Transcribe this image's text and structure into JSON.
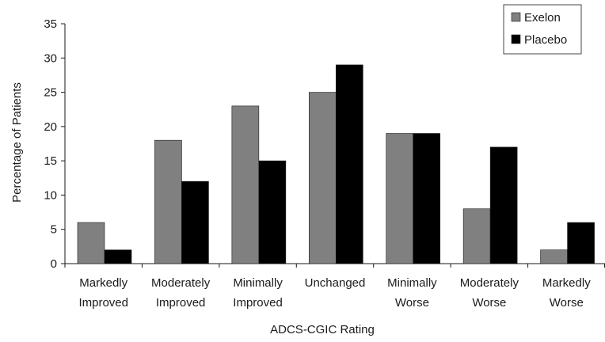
{
  "chart_data": {
    "type": "bar",
    "title": "",
    "xlabel": "ADCS-CGIC Rating",
    "ylabel": "Percentage of Patients",
    "ylim": [
      0,
      35
    ],
    "yticks": [
      0,
      5,
      10,
      15,
      20,
      25,
      30,
      35
    ],
    "grid": false,
    "legend_position": "top-right",
    "categories": [
      [
        "Markedly",
        "Improved"
      ],
      [
        "Moderately",
        "Improved"
      ],
      [
        "Minimally",
        "Improved"
      ],
      [
        "Unchanged"
      ],
      [
        "Minimally",
        "Worse"
      ],
      [
        "Moderately",
        "Worse"
      ],
      [
        "Markedly",
        "Worse"
      ]
    ],
    "series": [
      {
        "name": "Exelon",
        "color": "#808080",
        "values": [
          6,
          18,
          23,
          25,
          19,
          8,
          2
        ]
      },
      {
        "name": "Placebo",
        "color": "#000000",
        "values": [
          2,
          12,
          15,
          29,
          19,
          17,
          6
        ]
      }
    ]
  }
}
